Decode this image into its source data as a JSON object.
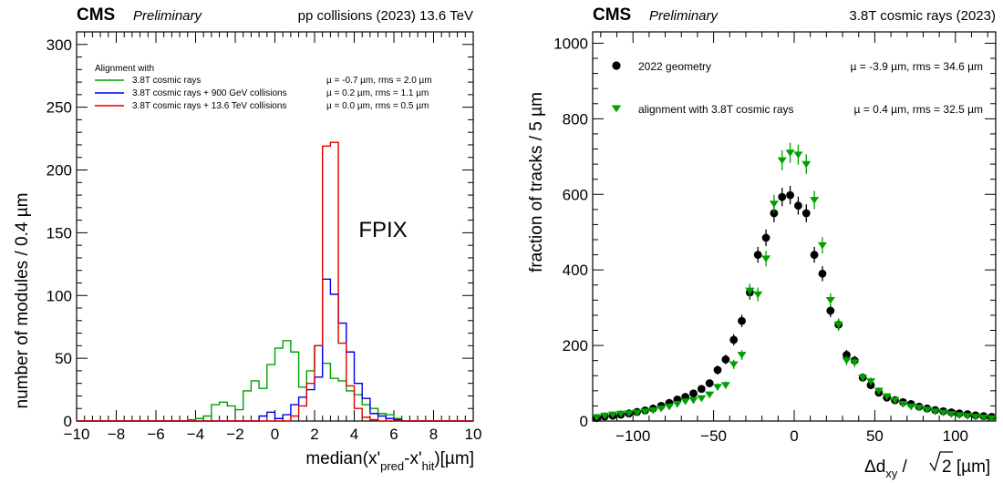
{
  "chart_data": [
    {
      "type": "histogram",
      "header": {
        "experiment": "CMS",
        "status": "Preliminary",
        "conditions": "pp collisions (2023) 13.6 TeV"
      },
      "xlabel": "median(x'pred-x'hit)[µm]",
      "ylabel": "number of modules / 0.4 µm",
      "xlim": [
        -10,
        10
      ],
      "ylim": [
        0,
        310
      ],
      "xticks": [
        -10,
        -8,
        -6,
        -4,
        -2,
        0,
        2,
        4,
        6,
        8,
        10
      ],
      "yticks": [
        0,
        50,
        100,
        150,
        200,
        250,
        300
      ],
      "annotation": "FPIX",
      "legend": {
        "title": "Alignment with",
        "position": "top"
      },
      "bin_edges_start": -10,
      "bin_width": 0.4,
      "series": [
        {
          "name": "3.8T cosmic rays",
          "color": "#00a000",
          "stats": "µ = -0.7 µm,  rms = 2.0 µm",
          "values": [
            0,
            0,
            0,
            0,
            0,
            0,
            0,
            0,
            0,
            0,
            0,
            0,
            0,
            0,
            1,
            2,
            4,
            13,
            15,
            12,
            9,
            24,
            32,
            26,
            45,
            58,
            64,
            55,
            27,
            40,
            60,
            46,
            34,
            32,
            24,
            21,
            13,
            10,
            6,
            5,
            2,
            0,
            0,
            0,
            0,
            0,
            0,
            0,
            0,
            0
          ]
        },
        {
          "name": "3.8T cosmic rays + 900 GeV collisions",
          "color": "#0000e0",
          "stats": "µ = 0.2 µm,  rms = 1.1 µm",
          "values": [
            0,
            0,
            0,
            0,
            0,
            0,
            0,
            0,
            0,
            0,
            0,
            0,
            0,
            0,
            0,
            0,
            0,
            0,
            0,
            0,
            0,
            0,
            0,
            4,
            7,
            2,
            5,
            13,
            19,
            25,
            35,
            113,
            101,
            78,
            55,
            30,
            18,
            6,
            4,
            2,
            1,
            0,
            0,
            0,
            0,
            0,
            0,
            0,
            0,
            0
          ]
        },
        {
          "name": "3.8T cosmic rays + 13.6 TeV collisions",
          "color": "#e00000",
          "stats": "µ = 0.0 µm,  rms = 0.5 µm",
          "values": [
            0,
            0,
            0,
            0,
            0,
            0,
            0,
            0,
            0,
            0,
            0,
            0,
            0,
            0,
            0,
            0,
            0,
            0,
            0,
            0,
            0,
            0,
            0,
            0,
            0,
            0,
            0,
            4,
            12,
            30,
            60,
            219,
            222,
            62,
            28,
            10,
            3,
            1,
            0,
            0,
            0,
            0,
            0,
            0,
            0,
            0,
            0,
            0,
            0,
            0
          ]
        }
      ]
    },
    {
      "type": "scatter",
      "header": {
        "experiment": "CMS",
        "status": "Preliminary",
        "conditions": "3.8T cosmic rays (2023)"
      },
      "xlabel": "Δdxy / √2 [µm]",
      "ylabel": "fraction of tracks / 5 µm",
      "xlim": [
        -125,
        125
      ],
      "ylim": [
        0,
        1030
      ],
      "xticks": [
        -100,
        -50,
        0,
        50,
        100
      ],
      "yticks": [
        0,
        200,
        400,
        600,
        800,
        1000
      ],
      "series": [
        {
          "name": "2022 geometry",
          "marker": "circle",
          "color": "#000000",
          "stats": "µ = -3.9 µm, rms = 34.6 µm",
          "x": [
            -122.5,
            -117.5,
            -112.5,
            -107.5,
            -102.5,
            -97.5,
            -92.5,
            -87.5,
            -82.5,
            -77.5,
            -72.5,
            -67.5,
            -62.5,
            -57.5,
            -52.5,
            -47.5,
            -42.5,
            -37.5,
            -32.5,
            -27.5,
            -22.5,
            -17.5,
            -12.5,
            -7.5,
            -2.5,
            2.5,
            7.5,
            12.5,
            17.5,
            22.5,
            27.5,
            32.5,
            37.5,
            42.5,
            47.5,
            52.5,
            57.5,
            62.5,
            67.5,
            72.5,
            77.5,
            82.5,
            87.5,
            92.5,
            97.5,
            102.5,
            107.5,
            112.5,
            117.5,
            122.5
          ],
          "y": [
            8,
            12,
            14,
            17,
            20,
            24,
            28,
            33,
            40,
            48,
            57,
            64,
            73,
            85,
            100,
            135,
            163,
            215,
            265,
            340,
            440,
            485,
            550,
            593,
            598,
            570,
            550,
            440,
            390,
            292,
            255,
            175,
            160,
            115,
            95,
            75,
            62,
            55,
            50,
            45,
            38,
            33,
            29,
            26,
            23,
            20,
            18,
            15,
            13,
            11
          ]
        },
        {
          "name": "alignment with 3.8T cosmic rays",
          "marker": "triangle-down",
          "color": "#00a000",
          "stats": "µ = 0.4 µm, rms = 32.5 µm",
          "x": [
            -122.5,
            -117.5,
            -112.5,
            -107.5,
            -102.5,
            -97.5,
            -92.5,
            -87.5,
            -82.5,
            -77.5,
            -72.5,
            -67.5,
            -62.5,
            -57.5,
            -52.5,
            -47.5,
            -42.5,
            -37.5,
            -32.5,
            -27.5,
            -22.5,
            -17.5,
            -12.5,
            -7.5,
            -2.5,
            2.5,
            7.5,
            12.5,
            17.5,
            22.5,
            27.5,
            32.5,
            37.5,
            42.5,
            47.5,
            52.5,
            57.5,
            62.5,
            67.5,
            72.5,
            77.5,
            82.5,
            87.5,
            92.5,
            97.5,
            102.5,
            107.5,
            112.5,
            117.5,
            122.5
          ],
          "y": [
            10,
            14,
            17,
            19,
            20,
            22,
            25,
            28,
            33,
            38,
            45,
            52,
            55,
            60,
            70,
            90,
            95,
            150,
            175,
            345,
            335,
            430,
            575,
            690,
            710,
            705,
            680,
            585,
            465,
            320,
            255,
            160,
            155,
            115,
            105,
            80,
            65,
            55,
            45,
            38,
            35,
            30,
            25,
            22,
            18,
            15,
            13,
            11,
            9,
            7
          ]
        }
      ]
    }
  ]
}
